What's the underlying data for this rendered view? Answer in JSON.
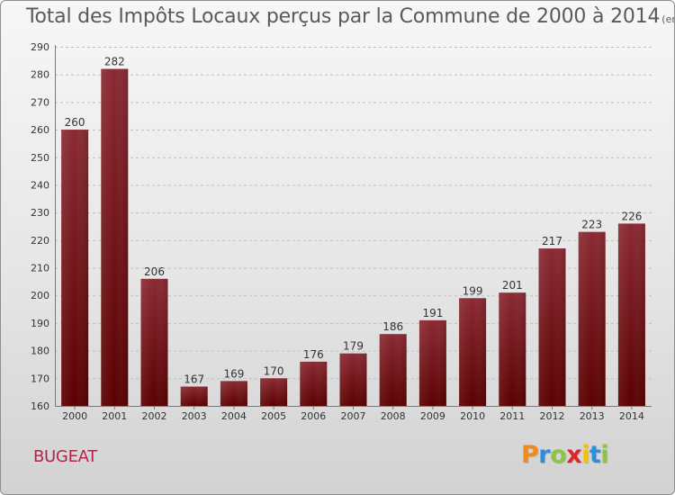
{
  "title": "Total des Impôts Locaux perçus par la Commune de 2000 à 2014",
  "unit_note": "(en milliers d'€)",
  "commune": "BUGEAT",
  "logo": {
    "text": "Proxiti",
    "letters": [
      "P",
      "r",
      "o",
      "x",
      "i",
      "t",
      "i"
    ],
    "letter_colors": [
      "#f08a1c",
      "#2e8fd6",
      "#8cc63f",
      "#e2232a",
      "#f2c300",
      "#2e8fd6",
      "#8cc63f"
    ]
  },
  "colors": {
    "bar_top": "#8a2a33",
    "bar_bottom": "#5a0000",
    "grid": "#bfbfbf",
    "axis_text": "#333333"
  },
  "chart_data": {
    "type": "bar",
    "title": "Total des Impôts Locaux perçus par la Commune de 2000 à 2014",
    "xlabel": "",
    "ylabel": "en milliers d'€",
    "categories": [
      "2000",
      "2001",
      "2002",
      "2003",
      "2004",
      "2005",
      "2006",
      "2007",
      "2008",
      "2009",
      "2010",
      "2011",
      "2012",
      "2013",
      "2014"
    ],
    "values": [
      260,
      282,
      206,
      167,
      169,
      170,
      176,
      179,
      186,
      191,
      199,
      201,
      217,
      223,
      226
    ],
    "ylim": [
      160,
      290
    ],
    "yticks": [
      160,
      170,
      180,
      190,
      200,
      210,
      220,
      230,
      240,
      250,
      260,
      270,
      280,
      290
    ],
    "grid": true,
    "legend": "none"
  }
}
